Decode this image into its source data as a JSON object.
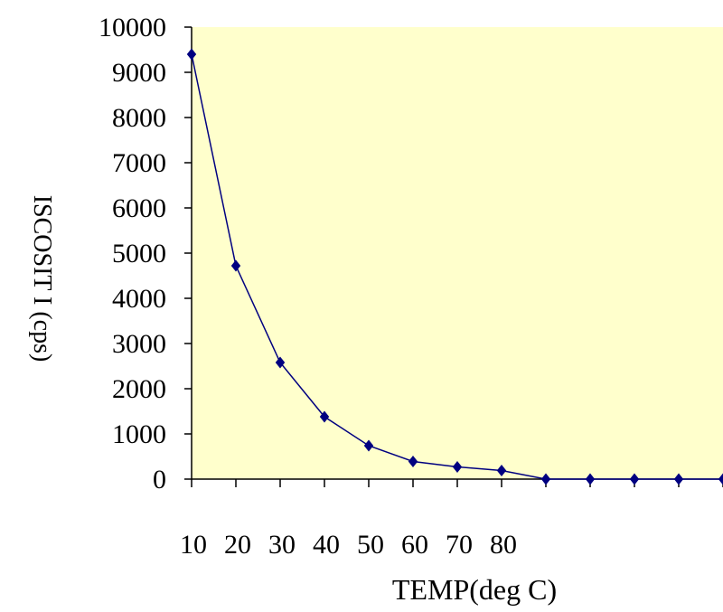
{
  "chart_data": {
    "type": "line",
    "title": "",
    "xlabel": "TEMP(deg C)",
    "ylabel": "ISCOSIT I (cps)",
    "ylim": [
      0,
      10000
    ],
    "y_ticks": [
      "0",
      "1000",
      "2000",
      "3000",
      "4000",
      "5000",
      "6000",
      "7000",
      "8000",
      "9000",
      "10000"
    ],
    "x_tick_labels": [
      "10",
      "20",
      "30",
      "40",
      "50",
      "60",
      "70",
      "80",
      "",
      "",
      "",
      "",
      ""
    ],
    "series": [
      {
        "values": [
          9400,
          4720,
          2580,
          1380,
          740,
          390,
          270,
          190,
          0,
          0,
          0,
          0,
          0
        ]
      }
    ],
    "grid": false,
    "legend": "none",
    "colors": {
      "plot_background": "#ffffcc",
      "line": "#000080",
      "marker": "#000080",
      "axis": "#000000"
    }
  }
}
